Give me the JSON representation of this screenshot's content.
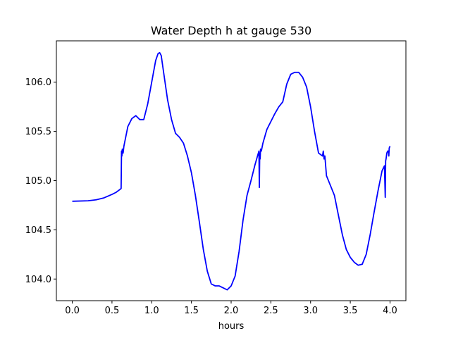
{
  "chart_data": {
    "type": "line",
    "title": "Water Depth h at gauge 530",
    "xlabel": "hours",
    "ylabel": "",
    "xlim": [
      -0.2,
      4.2
    ],
    "ylim": [
      103.78,
      106.42
    ],
    "xticks": [
      0.0,
      0.5,
      1.0,
      1.5,
      2.0,
      2.5,
      3.0,
      3.5,
      4.0
    ],
    "xtick_labels": [
      "0.0",
      "0.5",
      "1.0",
      "1.5",
      "2.0",
      "2.5",
      "3.0",
      "3.5",
      "4.0"
    ],
    "yticks": [
      104.0,
      104.5,
      105.0,
      105.5,
      106.0
    ],
    "ytick_labels": [
      "104.0",
      "104.5",
      "105.0",
      "105.5",
      "106.0"
    ],
    "grid": false,
    "series": [
      {
        "color": "#0000ff",
        "x": [
          0.0,
          0.2,
          0.3,
          0.4,
          0.5,
          0.55,
          0.6,
          0.615,
          0.62,
          0.625,
          0.63,
          0.64,
          0.65,
          0.7,
          0.75,
          0.8,
          0.85,
          0.9,
          0.95,
          1.0,
          1.05,
          1.08,
          1.1,
          1.12,
          1.15,
          1.2,
          1.25,
          1.3,
          1.35,
          1.4,
          1.45,
          1.5,
          1.55,
          1.6,
          1.65,
          1.7,
          1.75,
          1.8,
          1.85,
          1.9,
          1.95,
          2.0,
          2.05,
          2.1,
          2.15,
          2.2,
          2.25,
          2.3,
          2.35,
          2.355,
          2.36,
          2.365,
          2.37,
          2.38,
          2.4,
          2.45,
          2.5,
          2.55,
          2.6,
          2.65,
          2.7,
          2.75,
          2.8,
          2.85,
          2.9,
          2.95,
          3.0,
          3.05,
          3.1,
          3.15,
          3.16,
          3.17,
          3.18,
          3.2,
          3.25,
          3.3,
          3.35,
          3.4,
          3.45,
          3.5,
          3.55,
          3.6,
          3.65,
          3.7,
          3.75,
          3.8,
          3.85,
          3.9,
          3.93,
          3.94,
          3.945,
          3.95,
          3.96,
          3.97,
          3.98,
          3.985,
          3.99,
          4.0
        ],
        "y": [
          104.79,
          104.795,
          104.805,
          104.825,
          104.86,
          104.88,
          104.91,
          104.92,
          105.3,
          105.25,
          105.32,
          105.28,
          105.35,
          105.55,
          105.63,
          105.66,
          105.62,
          105.62,
          105.78,
          106.0,
          106.22,
          106.29,
          106.3,
          106.27,
          106.1,
          105.82,
          105.62,
          105.48,
          105.44,
          105.38,
          105.25,
          105.08,
          104.85,
          104.58,
          104.3,
          104.08,
          103.95,
          103.93,
          103.93,
          103.91,
          103.89,
          103.93,
          104.03,
          104.28,
          104.6,
          104.85,
          105.0,
          105.16,
          105.3,
          104.93,
          105.28,
          105.22,
          105.32,
          105.3,
          105.38,
          105.52,
          105.6,
          105.68,
          105.75,
          105.8,
          105.98,
          106.08,
          106.1,
          106.1,
          106.05,
          105.95,
          105.75,
          105.5,
          105.28,
          105.25,
          105.3,
          105.22,
          105.25,
          105.05,
          104.95,
          104.85,
          104.65,
          104.45,
          104.3,
          104.22,
          104.17,
          104.14,
          104.15,
          104.25,
          104.45,
          104.68,
          104.9,
          105.1,
          105.15,
          104.83,
          105.2,
          105.22,
          105.28,
          105.3,
          105.3,
          105.25,
          105.33,
          105.35
        ]
      }
    ]
  }
}
